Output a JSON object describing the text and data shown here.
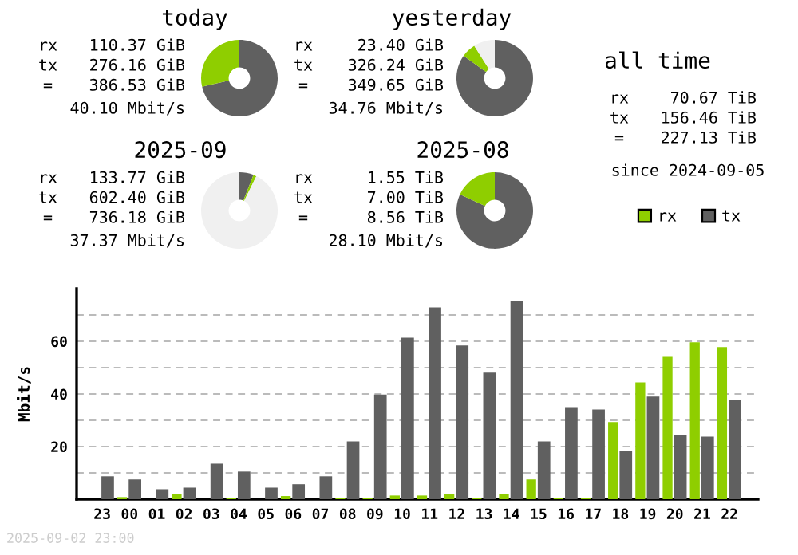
{
  "chart_data": [
    {
      "type": "donut",
      "title": "today",
      "legend": "right",
      "categories": [
        "rx",
        "tx",
        null
      ],
      "values": [
        28.6,
        71.4,
        0
      ],
      "colors": [
        "#8fce00",
        "#606060",
        "#f0f0f0"
      ],
      "annotations": [
        "rx",
        "110.37 GiB",
        "tx",
        "276.16 GiB",
        "=",
        "386.53 GiB",
        "40.10 Mbit/s"
      ]
    },
    {
      "type": "donut",
      "title": "yesterday",
      "categories": [
        null,
        null,
        null
      ],
      "values": [
        6.1,
        84.9,
        9.0
      ],
      "colors": [
        "#8fce00",
        "#606060",
        "#f0f0f0"
      ],
      "annotations": [
        "rx",
        "23.40 GiB",
        "tx",
        "326.24 GiB",
        "=",
        "349.65 GiB",
        "34.76 Mbit/s"
      ]
    },
    {
      "type": "donut",
      "title": "2025-09",
      "categories": [
        null,
        null,
        null
      ],
      "values": [
        1.3,
        6.0,
        92.7
      ],
      "colors": [
        "#8fce00",
        "#606060",
        "#f0f0f0"
      ],
      "annotations": [
        "rx",
        "133.77 GiB",
        "tx",
        "602.40 GiB",
        "=",
        "736.18 GiB",
        "37.37 Mbit/s"
      ]
    },
    {
      "type": "donut",
      "title": "2025-08",
      "categories": [
        null,
        null,
        null
      ],
      "values": [
        18.1,
        81.9,
        0
      ],
      "colors": [
        "#8fce00",
        "#606060",
        "#f0f0f0"
      ],
      "annotations": [
        "rx",
        "1.55 TiB",
        "tx",
        "7.00 TiB",
        "=",
        "8.56 TiB",
        "28.10 Mbit/s"
      ]
    },
    {
      "type": "other",
      "title": "all time",
      "annotations": [
        "rx",
        "70.67 TiB",
        "tx",
        "156.46 TiB",
        "=",
        "227.13 TiB",
        "since 2024-09-05"
      ]
    },
    {
      "type": "bar",
      "ylabel": "Mbit/s",
      "grid": "y",
      "categories": [
        "23",
        "00",
        "01",
        "02",
        "03",
        "04",
        "05",
        "06",
        "07",
        "08",
        "09",
        "10",
        "11",
        "12",
        "13",
        "14",
        "15",
        "16",
        "17",
        "18",
        "19",
        "20",
        "21",
        "22"
      ],
      "series": [
        {
          "color": "#8fce00",
          "values": [
            0,
            0.8,
            0,
            2.0,
            0,
            0.6,
            0,
            1.2,
            0,
            0.6,
            0.6,
            1.4,
            1.4,
            2.0,
            0.6,
            2.0,
            7.5,
            0.6,
            0.6,
            29.3,
            44.4,
            54.1,
            59.6,
            57.8
          ]
        },
        {
          "color": "#606060",
          "values": [
            8.7,
            7.5,
            3.8,
            4.4,
            13.5,
            10.5,
            4.4,
            5.7,
            8.7,
            22.0,
            39.8,
            61.4,
            72.9,
            58.4,
            48.1,
            75.4,
            22.0,
            34.7,
            34.1,
            18.4,
            39.0,
            24.4,
            23.8,
            37.8
          ]
        }
      ],
      "ylim": [
        0,
        80
      ],
      "yticks": [
        {
          "value": 10,
          "label": null
        },
        20,
        {
          "value": 30,
          "label": null
        },
        40,
        {
          "value": 50,
          "label": null
        },
        60,
        {
          "value": 70,
          "label": null
        }
      ],
      "annotations": [
        "2025-09-02 23:00"
      ]
    }
  ]
}
